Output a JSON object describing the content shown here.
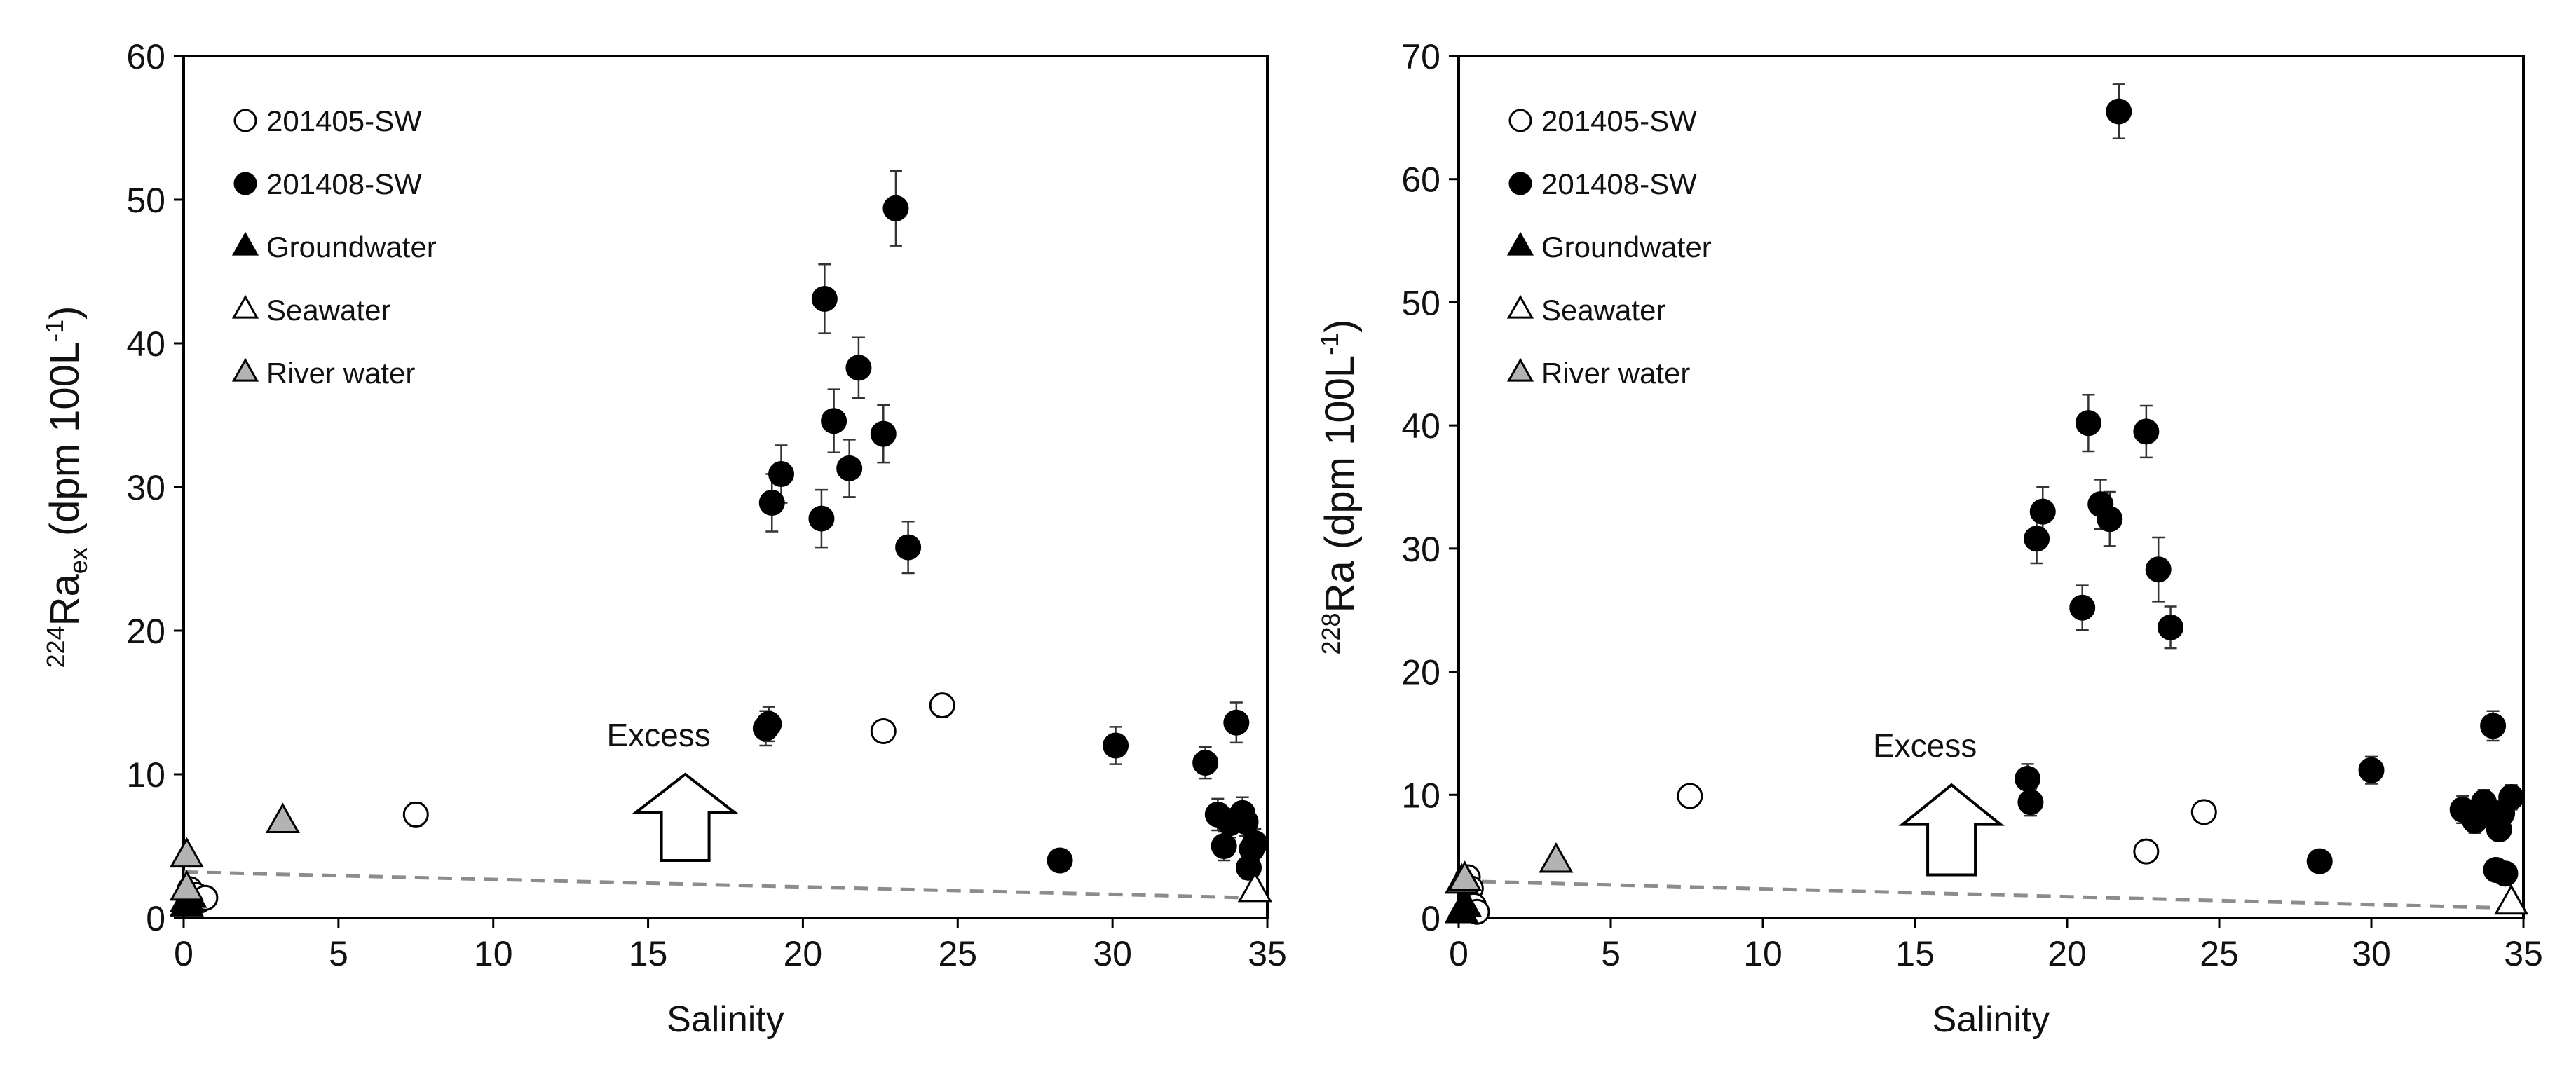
{
  "chart_data": [
    {
      "type": "scatter",
      "title": "",
      "xlabel": "Salinity",
      "ylabel": {
        "pre": "224",
        "main": "Ra",
        "sub": "ex",
        "tail": " (dpm 100L",
        "exp": "-1",
        "close": ")"
      },
      "xlim": [
        0,
        35
      ],
      "ylim": [
        0,
        60
      ],
      "xticks": [
        0,
        5,
        10,
        15,
        20,
        25,
        30,
        35
      ],
      "yticks": [
        0,
        10,
        20,
        30,
        40,
        50,
        60
      ],
      "grid": false,
      "legend_position": "top-left",
      "legend": [
        {
          "key": "sw201405",
          "label": "201405-SW"
        },
        {
          "key": "sw201408",
          "label": "201408-SW"
        },
        {
          "key": "groundwater",
          "label": "Groundwater"
        },
        {
          "key": "seawater",
          "label": "Seawater"
        },
        {
          "key": "river",
          "label": "River water"
        }
      ],
      "annotation": {
        "label": "Excess",
        "x": 16.2,
        "y_base": 4,
        "y_top": 10
      },
      "trendline": {
        "x": [
          0,
          34.6
        ],
        "y": [
          3.2,
          1.4
        ]
      },
      "series": [
        {
          "key": "sw201405",
          "name": "201405-SW",
          "marker": "circle-open",
          "points": [
            [
              0.2,
              2.0
            ],
            [
              0.4,
              1.6
            ],
            [
              0.5,
              1.2
            ],
            [
              0.7,
              1.4
            ],
            [
              7.5,
              7.2
            ],
            [
              22.6,
              13.0
            ],
            [
              24.5,
              14.8
            ]
          ],
          "errors": [
            0.3,
            0.3,
            0.3,
            0.3,
            0.8,
            0.7,
            0.8
          ]
        },
        {
          "key": "sw201408",
          "name": "201408-SW",
          "marker": "circle-filled",
          "points": [
            [
              18.8,
              13.2
            ],
            [
              18.9,
              13.5
            ],
            [
              19.0,
              28.9
            ],
            [
              19.3,
              30.9
            ],
            [
              20.6,
              27.8
            ],
            [
              20.7,
              43.1
            ],
            [
              21.0,
              34.6
            ],
            [
              21.5,
              31.3
            ],
            [
              21.8,
              38.3
            ],
            [
              22.6,
              33.7
            ],
            [
              23.0,
              49.4
            ],
            [
              23.4,
              25.8
            ],
            [
              28.3,
              4.0
            ],
            [
              30.1,
              12.0
            ],
            [
              33.0,
              10.8
            ],
            [
              33.4,
              7.2
            ],
            [
              33.6,
              5.0
            ],
            [
              33.8,
              6.6
            ],
            [
              34.0,
              13.6
            ],
            [
              34.2,
              7.3
            ],
            [
              34.3,
              6.7
            ],
            [
              34.4,
              3.5
            ],
            [
              34.5,
              4.8
            ],
            [
              34.6,
              5.2
            ]
          ],
          "errors": [
            1.2,
            1.2,
            2.0,
            2.0,
            2.0,
            2.4,
            2.2,
            2.0,
            2.1,
            2.0,
            2.6,
            1.8,
            0.6,
            1.3,
            1.1,
            1.1,
            1.0,
            1.0,
            1.4,
            1.1,
            1.0,
            0.8,
            0.9,
            1.0
          ]
        },
        {
          "key": "groundwater",
          "name": "Groundwater",
          "marker": "triangle-filled",
          "points": [
            [
              0.1,
              0.9
            ],
            [
              0.2,
              1.5
            ],
            [
              0.1,
              1.2
            ]
          ],
          "errors": []
        },
        {
          "key": "seawater",
          "name": "Seawater",
          "marker": "triangle-open",
          "points": [
            [
              34.6,
              1.9
            ]
          ],
          "errors": []
        },
        {
          "key": "river",
          "name": "River water",
          "marker": "triangle-gray",
          "points": [
            [
              0.1,
              4.3
            ],
            [
              3.2,
              6.7
            ],
            [
              0.1,
              2.0
            ]
          ],
          "errors": []
        }
      ]
    },
    {
      "type": "scatter",
      "title": "",
      "xlabel": "Salinity",
      "ylabel": {
        "pre": "228",
        "main": "Ra",
        "sub": "",
        "tail": " (dpm 100L",
        "exp": "-1",
        "close": ")"
      },
      "xlim": [
        0,
        35
      ],
      "ylim": [
        0,
        70
      ],
      "xticks": [
        0,
        5,
        10,
        15,
        20,
        25,
        30,
        35
      ],
      "yticks": [
        0,
        10,
        20,
        30,
        40,
        50,
        60,
        70
      ],
      "grid": false,
      "legend_position": "top-left",
      "legend": [
        {
          "key": "sw201405",
          "label": "201405-SW"
        },
        {
          "key": "sw201408",
          "label": "201408-SW"
        },
        {
          "key": "groundwater",
          "label": "Groundwater"
        },
        {
          "key": "seawater",
          "label": "Seawater"
        },
        {
          "key": "river",
          "label": "River water"
        }
      ],
      "annotation": {
        "label": "Excess",
        "x": 16.2,
        "y_base": 3.5,
        "y_top": 10.8
      },
      "trendline": {
        "x": [
          0,
          34.6
        ],
        "y": [
          3.0,
          0.8
        ]
      },
      "series": [
        {
          "key": "sw201405",
          "name": "201405-SW",
          "marker": "circle-open",
          "points": [
            [
              0.3,
              3.3
            ],
            [
              0.4,
              2.4
            ],
            [
              0.5,
              1.0
            ],
            [
              0.6,
              0.5
            ],
            [
              7.6,
              9.9
            ],
            [
              22.6,
              5.4
            ],
            [
              24.5,
              8.6
            ]
          ],
          "errors": [
            0.3,
            0.3,
            0.3,
            0.3,
            0.6,
            0.5,
            0.6
          ]
        },
        {
          "key": "sw201408",
          "name": "201408-SW",
          "marker": "circle-filled",
          "points": [
            [
              18.7,
              11.3
            ],
            [
              18.8,
              9.4
            ],
            [
              19.0,
              30.8
            ],
            [
              19.2,
              33.0
            ],
            [
              20.5,
              25.2
            ],
            [
              20.7,
              40.2
            ],
            [
              21.1,
              33.6
            ],
            [
              21.4,
              32.4
            ],
            [
              21.7,
              65.5
            ],
            [
              22.6,
              39.5
            ],
            [
              23.0,
              28.3
            ],
            [
              23.4,
              23.6
            ],
            [
              28.3,
              4.6
            ],
            [
              30.0,
              12.0
            ],
            [
              33.0,
              8.8
            ],
            [
              33.4,
              7.9
            ],
            [
              33.6,
              8.4
            ],
            [
              33.7,
              9.4
            ],
            [
              34.0,
              15.6
            ],
            [
              34.1,
              3.9
            ],
            [
              34.2,
              7.2
            ],
            [
              34.3,
              8.5
            ],
            [
              34.4,
              3.6
            ],
            [
              34.6,
              9.8
            ]
          ],
          "errors": [
            1.2,
            1.1,
            2.0,
            2.0,
            1.8,
            2.3,
            2.0,
            2.2,
            2.2,
            2.1,
            2.6,
            1.7,
            0.5,
            1.1,
            1.1,
            1.0,
            1.0,
            1.0,
            1.2,
            0.9,
            0.9,
            1.0,
            0.8,
            1.0
          ]
        },
        {
          "key": "groundwater",
          "name": "Groundwater",
          "marker": "triangle-filled",
          "points": [
            [
              0.1,
              0.5
            ],
            [
              0.2,
              1.0
            ]
          ],
          "errors": []
        },
        {
          "key": "seawater",
          "name": "Seawater",
          "marker": "triangle-open",
          "points": [
            [
              34.6,
              1.2
            ]
          ],
          "errors": []
        },
        {
          "key": "river",
          "name": "River water",
          "marker": "triangle-gray",
          "points": [
            [
              0.1,
              2.9
            ],
            [
              3.2,
              4.6
            ],
            [
              0.2,
              3.1
            ]
          ],
          "errors": []
        }
      ]
    }
  ],
  "colors": {
    "axis": "#000000",
    "text": "#111111",
    "marker_fill": "#000000",
    "open_fill": "#ffffff",
    "river_fill": "#b3b3b3",
    "trendline": "#8c8c8c",
    "errorbar": "#333333"
  }
}
